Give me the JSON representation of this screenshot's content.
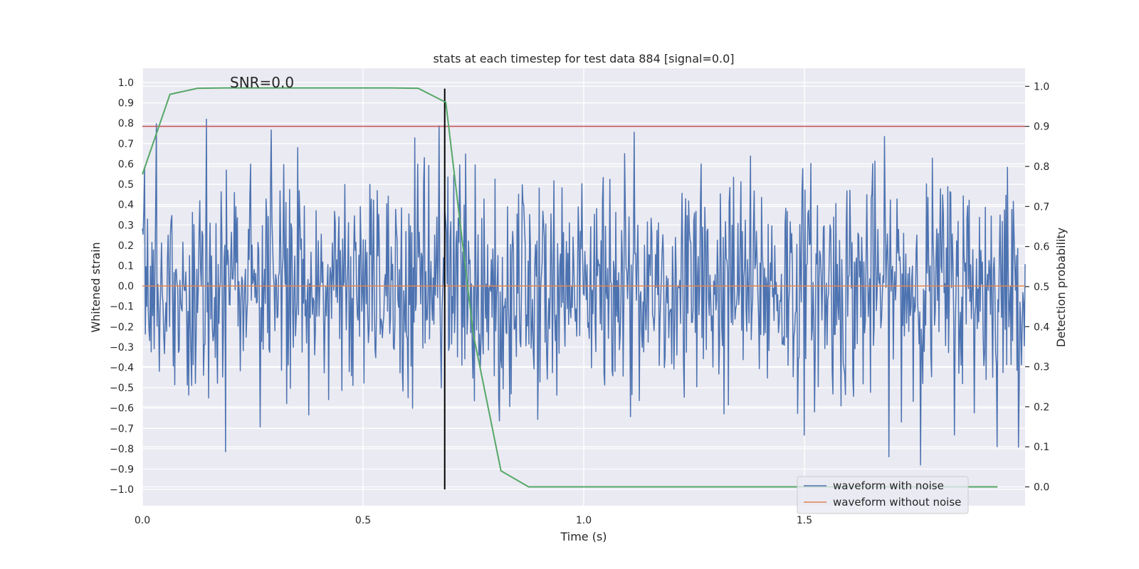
{
  "chart_data": {
    "type": "line",
    "title": "stats at each timestep for test data 884 [signal=0.0]",
    "xlabel": "Time (s)",
    "ylabel_left": "Whitened strain",
    "ylabel_right": "Detection probability",
    "annotation": "SNR=0.0",
    "xlim": [
      0.0,
      2.0
    ],
    "ylim_left": [
      -1.08,
      1.07
    ],
    "ylim_right": [
      -0.047,
      1.045
    ],
    "x_ticks": [
      "0.0",
      "0.5",
      "1.0",
      "1.5"
    ],
    "x_tick_values": [
      0.0,
      0.5,
      1.0,
      1.5
    ],
    "y_left_ticks": [
      "1.0",
      "0.9",
      "0.8",
      "0.7",
      "0.6",
      "0.5",
      "0.4",
      "0.3",
      "0.2",
      "0.1",
      "0.0",
      "−0.1",
      "−0.2",
      "−0.3",
      "−0.4",
      "−0.5",
      "−0.6",
      "−0.7",
      "−0.8",
      "−0.9",
      "−1.0"
    ],
    "y_left_tick_values": [
      1.0,
      0.9,
      0.8,
      0.7,
      0.6,
      0.5,
      0.4,
      0.3,
      0.2,
      0.1,
      0.0,
      -0.1,
      -0.2,
      -0.3,
      -0.4,
      -0.5,
      -0.6,
      -0.7,
      -0.8,
      -0.9,
      -1.0
    ],
    "y_right_ticks": [
      "1.0",
      "0.9",
      "0.8",
      "0.7",
      "0.6",
      "0.5",
      "0.4",
      "0.3",
      "0.2",
      "0.1",
      "0.0"
    ],
    "y_right_tick_values": [
      1.0,
      0.9,
      0.8,
      0.7,
      0.6,
      0.5,
      0.4,
      0.3,
      0.2,
      0.1,
      0.0
    ],
    "threshold": {
      "axis": "right",
      "value": 0.9,
      "color": "#c44e52"
    },
    "event_marker": {
      "x": 0.685,
      "y_from": -1.0,
      "y_to": 0.97,
      "color": "#000000"
    },
    "series": [
      {
        "name": "waveform with noise",
        "axis": "left",
        "color": "#4c72b0",
        "kind": "noise",
        "n_points": 1200,
        "x_start": 0.0,
        "x_end": 2.0,
        "amplitude_range": [
          -1.0,
          0.97
        ]
      },
      {
        "name": "waveform without noise",
        "axis": "left",
        "color": "#dd8452",
        "x": [
          0.0,
          2.0
        ],
        "values": [
          0.0,
          0.0
        ]
      },
      {
        "name": "detection probability",
        "axis": "right",
        "color": "#55a868",
        "x": [
          0.0,
          0.0625,
          0.125,
          0.1875,
          0.25,
          0.3125,
          0.375,
          0.4375,
          0.5,
          0.5625,
          0.625,
          0.6875,
          0.75,
          0.8125,
          0.875,
          0.9375,
          1.0,
          1.25,
          1.5,
          1.75,
          1.9375
        ],
        "values": [
          0.78,
          0.98,
          0.995,
          0.996,
          0.996,
          0.996,
          0.996,
          0.996,
          0.996,
          0.996,
          0.995,
          0.96,
          0.38,
          0.04,
          0.0,
          0.0,
          0.0,
          0.0,
          0.0,
          0.0,
          0.0
        ]
      }
    ],
    "legend": {
      "position": "lower-right",
      "entries": [
        {
          "label": "waveform with noise",
          "color": "#4c72b0"
        },
        {
          "label": "waveform without noise",
          "color": "#dd8452"
        }
      ]
    },
    "style": {
      "plot_background": "#eaeaf2",
      "grid_color": "#ffffff"
    }
  }
}
